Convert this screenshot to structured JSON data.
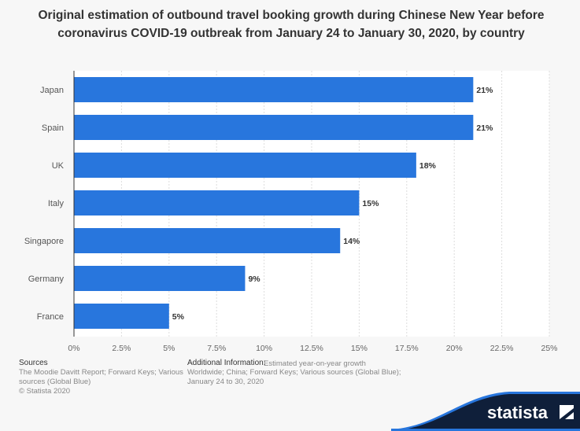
{
  "chart_data": {
    "type": "bar",
    "orientation": "horizontal",
    "title": "Original estimation of outbound travel booking growth during Chinese New Year before coronavirus COVID-19 outbreak from January 24 to January 30, 2020, by country",
    "categories": [
      "Japan",
      "Spain",
      "UK",
      "Italy",
      "Singapore",
      "Germany",
      "France"
    ],
    "values": [
      21,
      21,
      18,
      15,
      14,
      9,
      5
    ],
    "data_labels": [
      "21%",
      "21%",
      "18%",
      "15%",
      "14%",
      "9%",
      "5%"
    ],
    "xlabel": "Estimated year-on-year growth",
    "ylabel": "",
    "xlim": [
      0,
      25
    ],
    "ticks": [
      "0%",
      "2.5%",
      "5%",
      "7.5%",
      "10%",
      "12.5%",
      "15%",
      "17.5%",
      "20%",
      "22.5%",
      "25%"
    ],
    "grid": true,
    "bar_color": "#2876dd"
  },
  "footer": {
    "sources_title": "Sources",
    "sources_line1": "The Moodie Davitt Report; Forward Keys; Various",
    "sources_line2": "sources (Global Blue)",
    "copyright": "© Statista 2020",
    "info_title": "Additional Information:",
    "info_line1": "Worldwide; China; Forward Keys; Various sources (Global Blue);",
    "info_line2": "January 24 to 30, 2020",
    "logo": "statista"
  }
}
